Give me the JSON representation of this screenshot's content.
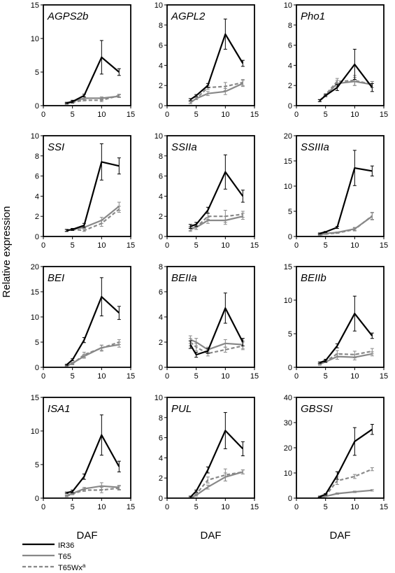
{
  "figure": {
    "ylabel": "Relative expression",
    "xlabel": "DAF",
    "legend": {
      "placement": "bottom-left",
      "entries": [
        {
          "key": "IR36",
          "label": "IR36",
          "color": "#000000",
          "style": "solid"
        },
        {
          "key": "T65",
          "label": "T65",
          "color": "#888888",
          "style": "solid"
        },
        {
          "key": "T65Wxa",
          "label": "T65Wx",
          "sup": "a",
          "color": "#888888",
          "style": "dashed"
        }
      ]
    }
  },
  "chart_data": [
    {
      "type": "line",
      "title": "AGPS2b",
      "x": [
        4,
        5,
        7,
        10,
        13
      ],
      "xlim": [
        0,
        15
      ],
      "ylim": [
        0,
        15
      ],
      "xticks": [
        0,
        5,
        10,
        15
      ],
      "yticks": [
        0,
        5,
        10,
        15
      ],
      "series": [
        {
          "name": "IR36",
          "values": [
            0.4,
            0.6,
            1.5,
            7.2,
            5.0
          ],
          "errors": [
            0.1,
            0.2,
            0.2,
            2.5,
            0.5
          ]
        },
        {
          "name": "T65",
          "values": [
            0.3,
            0.6,
            1.1,
            1.1,
            1.4
          ],
          "errors": [
            0.1,
            0.1,
            0.2,
            0.2,
            0.2
          ]
        },
        {
          "name": "T65Wxa",
          "values": [
            0.3,
            0.5,
            0.8,
            0.8,
            1.5
          ],
          "errors": [
            0.1,
            0.1,
            0.1,
            0.2,
            0.2
          ]
        }
      ]
    },
    {
      "type": "line",
      "title": "AGPL2",
      "x": [
        4,
        5,
        7,
        10,
        13
      ],
      "xlim": [
        0,
        15
      ],
      "ylim": [
        0,
        10
      ],
      "xticks": [
        0,
        5,
        10,
        15
      ],
      "yticks": [
        0,
        2,
        4,
        6,
        8,
        10
      ],
      "series": [
        {
          "name": "IR36",
          "values": [
            0.6,
            1.0,
            2.0,
            7.1,
            4.2
          ],
          "errors": [
            0.1,
            0.1,
            0.2,
            1.5,
            0.3
          ]
        },
        {
          "name": "T65",
          "values": [
            0.3,
            0.7,
            1.2,
            1.4,
            2.2
          ],
          "errors": [
            0.1,
            0.1,
            0.2,
            0.3,
            0.3
          ]
        },
        {
          "name": "T65Wxa",
          "values": [
            0.3,
            0.7,
            1.8,
            1.9,
            2.3
          ],
          "errors": [
            0.1,
            0.1,
            0.2,
            0.4,
            0.3
          ]
        }
      ]
    },
    {
      "type": "line",
      "title": "Pho1",
      "x": [
        4,
        5,
        7,
        10,
        13
      ],
      "xlim": [
        0,
        15
      ],
      "ylim": [
        0,
        10
      ],
      "xticks": [
        0,
        5,
        10,
        15
      ],
      "yticks": [
        0,
        2,
        4,
        6,
        8,
        10
      ],
      "series": [
        {
          "name": "IR36",
          "values": [
            0.5,
            1.0,
            1.8,
            4.1,
            1.8
          ],
          "errors": [
            0.1,
            0.1,
            0.3,
            1.5,
            0.4
          ]
        },
        {
          "name": "T65",
          "values": [
            0.5,
            1.0,
            2.2,
            2.4,
            2.1
          ],
          "errors": [
            0.1,
            0.1,
            0.3,
            0.4,
            0.3
          ]
        },
        {
          "name": "T65Wxa",
          "values": [
            0.5,
            1.1,
            2.4,
            2.5,
            2.1
          ],
          "errors": [
            0.1,
            0.1,
            0.3,
            0.5,
            0.3
          ]
        }
      ]
    },
    {
      "type": "line",
      "title": "SSI",
      "x": [
        4,
        5,
        7,
        10,
        13
      ],
      "xlim": [
        0,
        15
      ],
      "ylim": [
        0,
        10
      ],
      "xticks": [
        0,
        5,
        10,
        15
      ],
      "yticks": [
        0,
        2,
        4,
        6,
        8,
        10
      ],
      "series": [
        {
          "name": "IR36",
          "values": [
            0.6,
            0.7,
            1.1,
            7.4,
            7.0
          ],
          "errors": [
            0.1,
            0.1,
            0.2,
            1.8,
            0.8
          ]
        },
        {
          "name": "T65",
          "values": [
            0.6,
            0.7,
            0.9,
            1.6,
            3.0
          ],
          "errors": [
            0.1,
            0.1,
            0.1,
            0.3,
            0.4
          ]
        },
        {
          "name": "T65Wxa",
          "values": [
            0.6,
            0.7,
            0.6,
            1.3,
            2.7
          ],
          "errors": [
            0.1,
            0.1,
            0.1,
            0.3,
            0.3
          ]
        }
      ]
    },
    {
      "type": "line",
      "title": "SSIIa",
      "x": [
        4,
        5,
        7,
        10,
        13
      ],
      "xlim": [
        0,
        15
      ],
      "ylim": [
        0,
        10
      ],
      "xticks": [
        0,
        5,
        10,
        15
      ],
      "yticks": [
        0,
        2,
        4,
        6,
        8,
        10
      ],
      "series": [
        {
          "name": "IR36",
          "values": [
            1.0,
            1.2,
            2.6,
            6.4,
            4.0
          ],
          "errors": [
            0.2,
            0.2,
            0.3,
            1.7,
            0.6
          ]
        },
        {
          "name": "T65",
          "values": [
            0.8,
            0.9,
            1.6,
            1.6,
            2.0
          ],
          "errors": [
            0.2,
            0.2,
            0.3,
            0.4,
            0.3
          ]
        },
        {
          "name": "T65Wxa",
          "values": [
            0.7,
            0.9,
            2.0,
            2.0,
            2.2
          ],
          "errors": [
            0.2,
            0.2,
            0.3,
            0.6,
            0.3
          ]
        }
      ]
    },
    {
      "type": "line",
      "title": "SSIIIa",
      "x": [
        4,
        5,
        7,
        10,
        13
      ],
      "xlim": [
        0,
        15
      ],
      "ylim": [
        0,
        20
      ],
      "xticks": [
        0,
        5,
        10,
        15
      ],
      "yticks": [
        0,
        5,
        10,
        15,
        20
      ],
      "series": [
        {
          "name": "IR36",
          "values": [
            0.6,
            0.9,
            1.8,
            13.6,
            13.0
          ],
          "errors": [
            0.1,
            0.1,
            0.2,
            3.5,
            1.0
          ]
        },
        {
          "name": "T65",
          "values": [
            0.4,
            0.6,
            0.8,
            1.5,
            4.0
          ],
          "errors": [
            0.1,
            0.1,
            0.1,
            0.3,
            0.7
          ]
        },
        {
          "name": "T65Wxa",
          "values": [
            0.3,
            0.5,
            0.7,
            1.4,
            4.1
          ],
          "errors": [
            0.1,
            0.1,
            0.1,
            0.3,
            0.7
          ]
        }
      ]
    },
    {
      "type": "line",
      "title": "BEI",
      "x": [
        4,
        5,
        7,
        10,
        13
      ],
      "xlim": [
        0,
        15
      ],
      "ylim": [
        0,
        20
      ],
      "xticks": [
        0,
        5,
        10,
        15
      ],
      "yticks": [
        0,
        5,
        10,
        15,
        20
      ],
      "series": [
        {
          "name": "IR36",
          "values": [
            0.5,
            1.5,
            5.4,
            14.0,
            10.8
          ],
          "errors": [
            0.1,
            0.2,
            0.5,
            3.8,
            1.3
          ]
        },
        {
          "name": "T65",
          "values": [
            0.3,
            0.8,
            2.2,
            3.9,
            4.5
          ],
          "errors": [
            0.1,
            0.2,
            0.4,
            0.5,
            0.5
          ]
        },
        {
          "name": "T65Wxa",
          "values": [
            0.3,
            0.7,
            2.5,
            3.8,
            5.0
          ],
          "errors": [
            0.1,
            0.2,
            0.5,
            0.6,
            0.5
          ]
        }
      ]
    },
    {
      "type": "line",
      "title": "BEIIa",
      "x": [
        4,
        5,
        7,
        10,
        13
      ],
      "xlim": [
        0,
        15
      ],
      "ylim": [
        0,
        8
      ],
      "xticks": [
        0,
        5,
        10,
        15
      ],
      "yticks": [
        0,
        2,
        4,
        6,
        8
      ],
      "series": [
        {
          "name": "IR36",
          "values": [
            1.8,
            1.0,
            1.3,
            4.7,
            2.0
          ],
          "errors": [
            0.3,
            0.2,
            0.2,
            1.2,
            0.3
          ]
        },
        {
          "name": "T65",
          "values": [
            2.2,
            2.0,
            1.4,
            1.9,
            1.8
          ],
          "errors": [
            0.3,
            0.3,
            0.2,
            0.3,
            0.3
          ]
        },
        {
          "name": "T65Wxa",
          "values": [
            2.0,
            1.6,
            1.1,
            1.4,
            1.7
          ],
          "errors": [
            0.3,
            0.3,
            0.2,
            0.2,
            0.3
          ]
        }
      ]
    },
    {
      "type": "line",
      "title": "BEIIb",
      "x": [
        4,
        5,
        7,
        10,
        13
      ],
      "xlim": [
        0,
        15
      ],
      "ylim": [
        0,
        15
      ],
      "xticks": [
        0,
        5,
        10,
        15
      ],
      "yticks": [
        0,
        5,
        10,
        15
      ],
      "series": [
        {
          "name": "IR36",
          "values": [
            0.7,
            1.0,
            3.2,
            8.0,
            4.7
          ],
          "errors": [
            0.1,
            0.2,
            0.3,
            2.6,
            0.4
          ]
        },
        {
          "name": "T65",
          "values": [
            0.5,
            0.8,
            1.6,
            1.5,
            2.0
          ],
          "errors": [
            0.1,
            0.1,
            0.4,
            0.4,
            0.3
          ]
        },
        {
          "name": "T65Wxa",
          "values": [
            0.4,
            0.9,
            2.0,
            1.9,
            2.4
          ],
          "errors": [
            0.1,
            0.2,
            0.5,
            0.5,
            0.4
          ]
        }
      ]
    },
    {
      "type": "line",
      "title": "ISA1",
      "x": [
        4,
        5,
        7,
        10,
        13
      ],
      "xlim": [
        0,
        15
      ],
      "ylim": [
        0,
        15
      ],
      "xticks": [
        0,
        5,
        10,
        15
      ],
      "yticks": [
        0,
        5,
        10,
        15
      ],
      "series": [
        {
          "name": "IR36",
          "values": [
            0.8,
            1.0,
            3.2,
            9.4,
            4.7
          ],
          "errors": [
            0.1,
            0.2,
            0.4,
            3.0,
            0.8
          ]
        },
        {
          "name": "T65",
          "values": [
            0.4,
            0.7,
            1.4,
            1.8,
            1.6
          ],
          "errors": [
            0.1,
            0.1,
            0.2,
            0.5,
            0.3
          ]
        },
        {
          "name": "T65Wxa",
          "values": [
            0.3,
            0.6,
            1.2,
            1.2,
            1.5
          ],
          "errors": [
            0.1,
            0.1,
            0.2,
            0.4,
            0.3
          ]
        }
      ]
    },
    {
      "type": "line",
      "title": "PUL",
      "x": [
        4,
        5,
        7,
        10,
        13
      ],
      "xlim": [
        0,
        15
      ],
      "ylim": [
        0,
        10
      ],
      "xticks": [
        0,
        5,
        10,
        15
      ],
      "yticks": [
        0,
        2,
        4,
        6,
        8,
        10
      ],
      "series": [
        {
          "name": "IR36",
          "values": [
            0.1,
            0.7,
            2.8,
            6.7,
            4.9
          ],
          "errors": [
            0.1,
            0.1,
            0.3,
            1.8,
            0.7
          ]
        },
        {
          "name": "T65",
          "values": [
            0.0,
            0.3,
            1.1,
            2.1,
            2.6
          ],
          "errors": [
            0.1,
            0.1,
            0.2,
            0.4,
            0.2
          ]
        },
        {
          "name": "T65Wxa",
          "values": [
            0.0,
            0.4,
            1.8,
            2.3,
            2.6
          ],
          "errors": [
            0.1,
            0.1,
            0.3,
            0.6,
            0.2
          ]
        }
      ]
    },
    {
      "type": "line",
      "title": "GBSSI",
      "x": [
        4,
        5,
        7,
        10,
        13
      ],
      "xlim": [
        0,
        15
      ],
      "ylim": [
        0,
        40
      ],
      "xticks": [
        0,
        5,
        10,
        15
      ],
      "yticks": [
        0,
        10,
        20,
        30,
        40
      ],
      "series": [
        {
          "name": "IR36",
          "values": [
            0.6,
            1.5,
            9.0,
            22.5,
            27.3
          ],
          "errors": [
            0.2,
            0.3,
            1.5,
            5.5,
            2.0
          ]
        },
        {
          "name": "T65",
          "values": [
            0.3,
            0.7,
            1.8,
            2.5,
            3.1
          ],
          "errors": [
            0.1,
            0.1,
            0.3,
            0.3,
            0.3
          ]
        },
        {
          "name": "T65Wxa",
          "values": [
            0.3,
            0.9,
            6.9,
            8.6,
            11.5
          ],
          "errors": [
            0.1,
            0.2,
            1.5,
            0.8,
            0.6
          ]
        }
      ]
    }
  ]
}
